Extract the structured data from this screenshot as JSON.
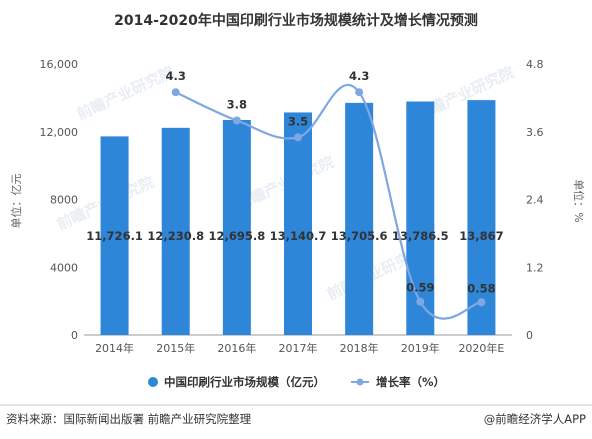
{
  "colors": {
    "bar": "#2e86d9",
    "line": "#7fa8e3",
    "grid": "#e6e6e6",
    "footer_line": "#c8c8c8"
  },
  "footer": {
    "source": "资料来源：国际新闻出版署 前瞻产业研究院整理",
    "brand": "@前瞻经济学人APP"
  },
  "watermark": "前瞻产业研究院",
  "chart_data": {
    "type": "bar",
    "title": "2014-2020年中国印刷行业市场规模统计及增长情况预测",
    "categories": [
      "2014年",
      "2015年",
      "2016年",
      "2017年",
      "2018年",
      "2019年",
      "2020年E"
    ],
    "ylabel": "单位：亿元",
    "ylabel_right": "单位：%",
    "ylim": [
      0,
      16000
    ],
    "yticks": [
      "0",
      "4000",
      "8000",
      "12,000",
      "16,000"
    ],
    "ylim_right": [
      0,
      4.8
    ],
    "yticks_right": [
      "0",
      "1.2",
      "2.4",
      "3.6",
      "4.8"
    ],
    "grid": false,
    "legend_position": "bottom",
    "series": [
      {
        "name": "中国印刷行业市场规模（亿元）",
        "type": "bar",
        "values": [
          11726.1,
          12230.8,
          12695.8,
          13140.7,
          13705.6,
          13786.5,
          13867
        ],
        "labels": [
          "11,726.1",
          "12,230.8",
          "12,695.8",
          "13,140.7",
          "13,705.6",
          "13,786.5",
          "13,867"
        ]
      },
      {
        "name": "增长率（%）",
        "type": "line",
        "axis": "right",
        "x": [
          "2015年",
          "2016年",
          "2017年",
          "2018年",
          "2019年",
          "2020年E"
        ],
        "values": [
          4.3,
          3.8,
          3.5,
          4.3,
          0.59,
          0.58
        ],
        "labels": [
          "4.3",
          "3.8",
          "3.5",
          "4.3",
          "0.59",
          "0.58"
        ]
      }
    ]
  }
}
